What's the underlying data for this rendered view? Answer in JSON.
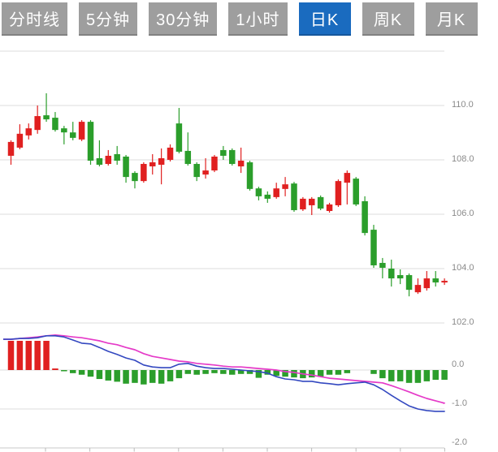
{
  "toolbar": {
    "tabs": [
      {
        "id": "minute-line",
        "label": "分时线",
        "active": false
      },
      {
        "id": "5min",
        "label": "5分钟",
        "active": false
      },
      {
        "id": "30min",
        "label": "30分钟",
        "active": false
      },
      {
        "id": "1hour",
        "label": "1小时",
        "active": false
      },
      {
        "id": "daily-k",
        "label": "日K",
        "active": true
      },
      {
        "id": "weekly-k",
        "label": "周K",
        "active": false
      },
      {
        "id": "monthly-k",
        "label": "月K",
        "active": false
      }
    ]
  },
  "colors": {
    "tab_inactive_bg": "#9e9e9e",
    "tab_active_bg": "#1a6bbf",
    "tab_text": "#ffffff",
    "up_red": "#e02020",
    "down_green": "#2b9e2b",
    "dif_line_blue": "#3348c0",
    "dea_line_magenta": "#e53ac8",
    "gridline": "#dddddd",
    "axis_line": "#c8c8c8",
    "tick_mark": "#bbbbbb",
    "label_text": "#8a8a8a",
    "background": "#ffffff"
  },
  "chart_data": {
    "type": "candlestick+macd",
    "price_axis": {
      "gridline_values": [
        112,
        110,
        108,
        106,
        104,
        102
      ],
      "tick_values": [
        110,
        108,
        106,
        104,
        102
      ],
      "tick_labels": [
        "110.0",
        "108.0",
        "106.0",
        "104.0",
        "102.0"
      ]
    },
    "macd_axis": {
      "gridline_values": [
        0,
        -1
      ],
      "tick_values": [
        0,
        -1,
        -2
      ],
      "tick_labels": [
        "0.0",
        "-1.0",
        "-2.0"
      ]
    },
    "candles_ohlc": [
      [
        108.15,
        108.72,
        107.82,
        108.66
      ],
      [
        108.45,
        109.31,
        108.39,
        108.96
      ],
      [
        108.9,
        109.34,
        108.75,
        109.16
      ],
      [
        109.1,
        110.0,
        108.96,
        109.61
      ],
      [
        109.64,
        110.45,
        109.4,
        109.49
      ],
      [
        109.55,
        109.76,
        109.04,
        109.1
      ],
      [
        109.16,
        109.25,
        108.57,
        109.01
      ],
      [
        109.01,
        109.4,
        108.72,
        108.81
      ],
      [
        108.75,
        109.46,
        108.69,
        109.4
      ],
      [
        109.4,
        109.46,
        107.82,
        107.97
      ],
      [
        108.06,
        108.72,
        107.76,
        107.82
      ],
      [
        107.85,
        108.36,
        107.79,
        108.15
      ],
      [
        108.21,
        108.51,
        107.82,
        107.97
      ],
      [
        108.12,
        108.18,
        107.16,
        107.37
      ],
      [
        107.52,
        107.58,
        106.95,
        107.22
      ],
      [
        107.22,
        107.91,
        107.16,
        107.85
      ],
      [
        107.76,
        108.21,
        107.46,
        107.91
      ],
      [
        107.82,
        108.42,
        107.1,
        108.06
      ],
      [
        108.0,
        108.57,
        107.94,
        108.45
      ],
      [
        109.34,
        109.91,
        108.24,
        108.3
      ],
      [
        108.33,
        109.01,
        107.79,
        107.85
      ],
      [
        107.85,
        107.91,
        107.22,
        107.37
      ],
      [
        107.46,
        108.06,
        107.31,
        107.61
      ],
      [
        107.61,
        108.18,
        107.55,
        108.12
      ],
      [
        108.36,
        108.51,
        108.0,
        108.15
      ],
      [
        108.36,
        108.42,
        107.79,
        107.85
      ],
      [
        107.76,
        108.45,
        107.52,
        107.97
      ],
      [
        107.91,
        107.97,
        106.87,
        106.93
      ],
      [
        106.95,
        107.01,
        106.51,
        106.66
      ],
      [
        106.72,
        106.84,
        106.42,
        106.57
      ],
      [
        106.63,
        107.16,
        106.57,
        106.95
      ],
      [
        106.93,
        107.37,
        106.66,
        107.1
      ],
      [
        107.13,
        107.19,
        106.09,
        106.15
      ],
      [
        106.18,
        106.63,
        106.12,
        106.57
      ],
      [
        106.33,
        106.63,
        105.97,
        106.57
      ],
      [
        106.63,
        106.69,
        106.15,
        106.21
      ],
      [
        106.12,
        106.42,
        106.06,
        106.36
      ],
      [
        106.33,
        107.28,
        106.27,
        107.22
      ],
      [
        107.16,
        107.61,
        106.36,
        107.52
      ],
      [
        107.31,
        107.37,
        106.3,
        106.36
      ],
      [
        106.48,
        106.66,
        105.22,
        105.31
      ],
      [
        105.43,
        105.61,
        104.03,
        104.12
      ],
      [
        104.21,
        104.39,
        103.64,
        104.03
      ],
      [
        104.0,
        104.33,
        103.34,
        103.64
      ],
      [
        103.76,
        103.97,
        103.43,
        103.64
      ],
      [
        103.76,
        103.82,
        102.98,
        103.22
      ],
      [
        103.13,
        103.64,
        103.07,
        103.4
      ],
      [
        103.28,
        103.91,
        103.19,
        103.64
      ],
      [
        103.64,
        103.91,
        103.34,
        103.49
      ],
      [
        103.49,
        103.64,
        103.4,
        103.55
      ]
    ],
    "macd": {
      "histogram": [
        0.75,
        0.75,
        0.75,
        0.75,
        0.75,
        0.04,
        -0.03,
        -0.08,
        -0.12,
        -0.17,
        -0.23,
        -0.27,
        -0.3,
        -0.35,
        -0.33,
        -0.37,
        -0.33,
        -0.35,
        -0.29,
        -0.21,
        -0.1,
        -0.12,
        -0.1,
        -0.08,
        -0.1,
        -0.12,
        -0.1,
        -0.1,
        -0.2,
        -0.12,
        -0.15,
        -0.17,
        -0.19,
        -0.21,
        -0.19,
        -0.17,
        -0.12,
        -0.12,
        -0.08,
        0.0,
        0.0,
        -0.1,
        -0.21,
        -0.29,
        -0.29,
        -0.33,
        -0.33,
        -0.29,
        -0.25,
        -0.25
      ],
      "dif": [
        0.79,
        0.81,
        0.81,
        0.83,
        0.88,
        0.88,
        0.85,
        0.77,
        0.69,
        0.67,
        0.58,
        0.48,
        0.4,
        0.31,
        0.25,
        0.13,
        0.08,
        0.06,
        0.06,
        0.15,
        0.17,
        0.1,
        0.06,
        0.04,
        0.04,
        0.02,
        0.0,
        -0.02,
        -0.04,
        -0.08,
        -0.17,
        -0.23,
        -0.25,
        -0.29,
        -0.29,
        -0.33,
        -0.35,
        -0.38,
        -0.35,
        -0.33,
        -0.31,
        -0.38,
        -0.5,
        -0.65,
        -0.79,
        -0.92,
        -1.0,
        -1.04,
        -1.06,
        -1.06
      ],
      "dea": [
        0.79,
        0.81,
        0.83,
        0.85,
        0.88,
        0.9,
        0.88,
        0.85,
        0.83,
        0.79,
        0.75,
        0.69,
        0.65,
        0.58,
        0.52,
        0.42,
        0.35,
        0.31,
        0.27,
        0.23,
        0.21,
        0.17,
        0.15,
        0.13,
        0.1,
        0.08,
        0.08,
        0.06,
        0.04,
        0.02,
        0.0,
        -0.04,
        -0.06,
        -0.1,
        -0.13,
        -0.17,
        -0.21,
        -0.23,
        -0.25,
        -0.27,
        -0.29,
        -0.31,
        -0.33,
        -0.4,
        -0.48,
        -0.56,
        -0.65,
        -0.73,
        -0.79,
        -0.85
      ]
    }
  }
}
